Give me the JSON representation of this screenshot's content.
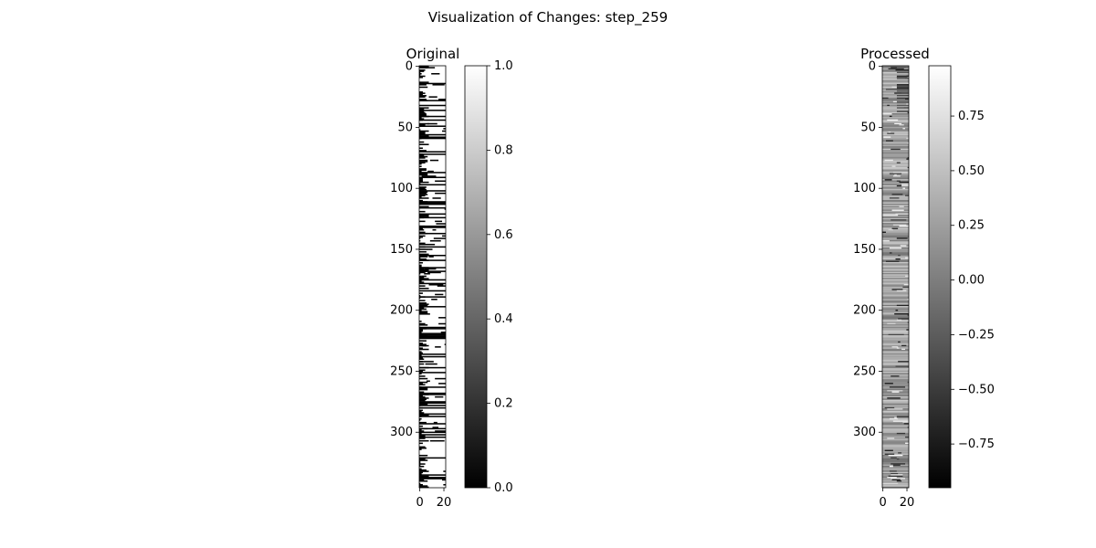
{
  "figure": {
    "suptitle": "Visualization of Changes: step_259"
  },
  "chart_data": [
    {
      "type": "heatmap",
      "title": "Original",
      "colormap": "gray",
      "rows": 346,
      "cols": 22,
      "x_ticks": [
        "0",
        "20"
      ],
      "y_ticks": [
        "0",
        "50",
        "100",
        "150",
        "200",
        "250",
        "300"
      ],
      "value_range": [
        0,
        1
      ],
      "colorbar": {
        "vmin": 0.0,
        "vmax": 1.0,
        "ticks": [
          "0.0",
          "0.2",
          "0.4",
          "0.6",
          "0.8",
          "1.0"
        ]
      },
      "notes_visible": "binary black/white horizontal streaks"
    },
    {
      "type": "heatmap",
      "title": "Processed",
      "colormap": "gray",
      "rows": 346,
      "cols": 22,
      "x_ticks": [
        "0",
        "20"
      ],
      "y_ticks": [
        "0",
        "50",
        "100",
        "150",
        "200",
        "250",
        "300"
      ],
      "value_range": [
        -0.95,
        0.98
      ],
      "colorbar": {
        "vmin": -0.95,
        "vmax": 0.98,
        "ticks": [
          "−0.75",
          "−0.50",
          "−0.25",
          "0.00",
          "0.25",
          "0.50",
          "0.75"
        ]
      },
      "notes_visible": "mid-gray horizontal streaks"
    }
  ]
}
